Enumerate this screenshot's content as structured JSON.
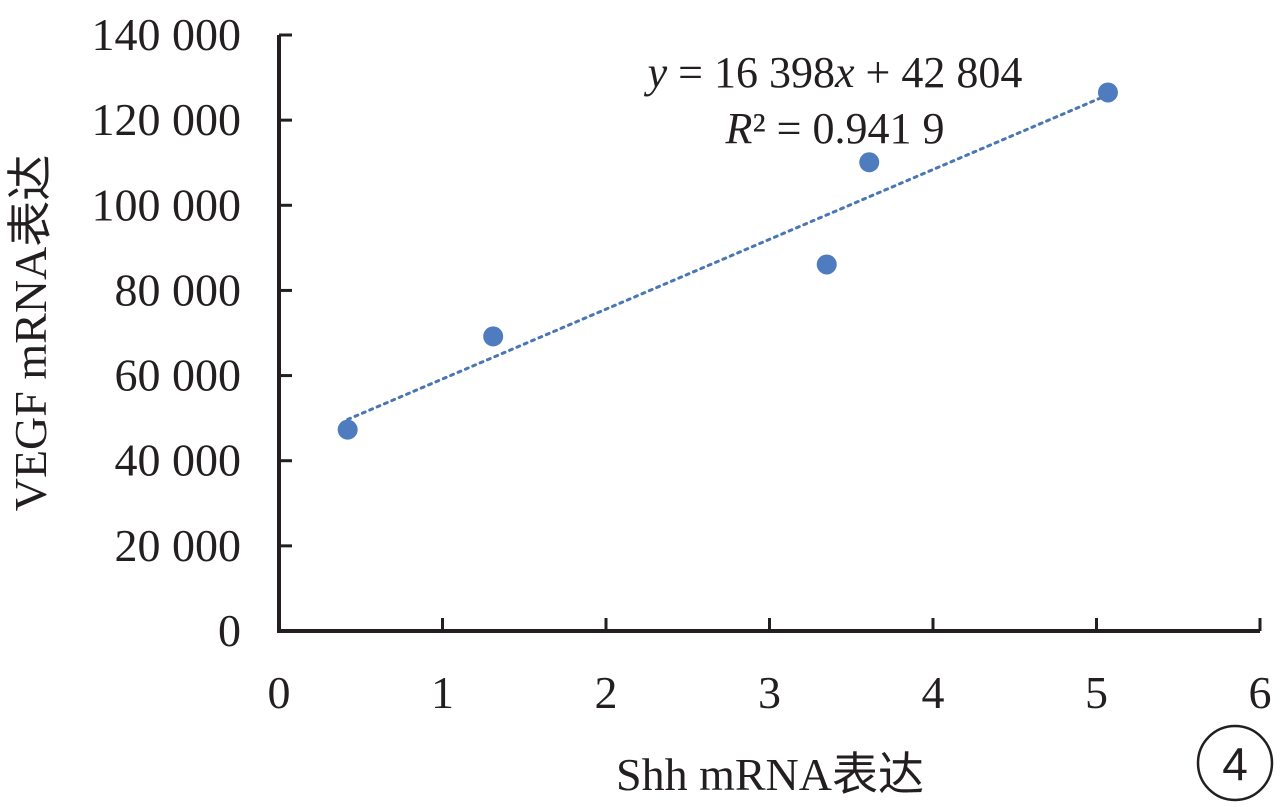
{
  "chart_data": {
    "type": "scatter",
    "xlabel": "Shh mRNA表达",
    "ylabel": "VEGF mRNA表达",
    "xlim": [
      0,
      6
    ],
    "ylim": [
      0,
      140000
    ],
    "x_ticks": [
      "0",
      "1",
      "2",
      "3",
      "4",
      "5",
      "6"
    ],
    "y_ticks": [
      "0",
      "20 000",
      "40 000",
      "60 000",
      "80 000",
      "100 000",
      "120 000",
      "140 000"
    ],
    "points": [
      {
        "x": 0.42,
        "y": 47300
      },
      {
        "x": 1.31,
        "y": 69200
      },
      {
        "x": 3.35,
        "y": 86100
      },
      {
        "x": 3.61,
        "y": 110100
      },
      {
        "x": 5.07,
        "y": 126500
      }
    ],
    "trendline": {
      "type": "linear",
      "slope": 16398,
      "intercept": 42804,
      "x_range": [
        0.42,
        5.07
      ],
      "style": "dotted"
    },
    "equation": {
      "y": "y",
      "eq_part": " = 16 398",
      "x": "x",
      "const_part": " + 42 804",
      "r_symbol": "R",
      "r_part": "² = 0.941 9"
    },
    "grid": false,
    "legend": "none",
    "colors": {
      "point": "#4f7bbf",
      "trendline": "#4a76b3",
      "axis": "#231f20"
    }
  },
  "panel_label": "4"
}
